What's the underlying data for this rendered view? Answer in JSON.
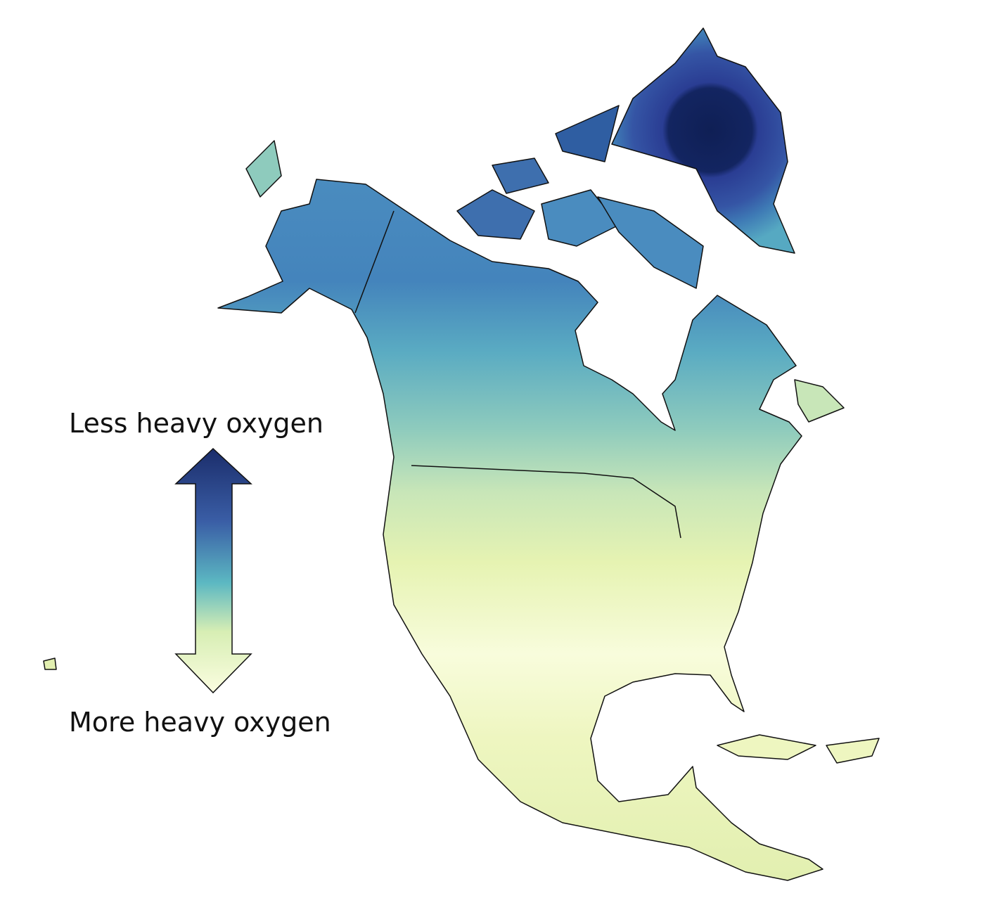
{
  "legend": {
    "top_label": "Less heavy oxygen",
    "bottom_label": "More heavy oxygen"
  }
}
